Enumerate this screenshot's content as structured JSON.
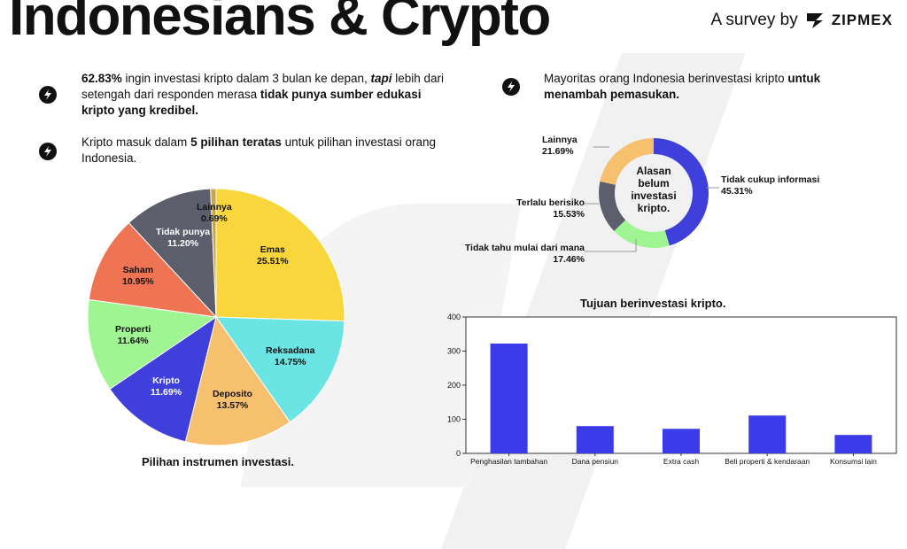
{
  "header": {
    "title": "Indonesians & Crypto",
    "survey_prefix": "A survey by",
    "brand_name": "ZIPMEX"
  },
  "points": [
    {
      "icon": "bolt-icon",
      "parts": [
        {
          "t": "62.83%",
          "b": true
        },
        {
          "t": " ingin investasi kripto dalam 3 bulan ke depan, ",
          "b": false
        },
        {
          "t": "tapi",
          "b": true,
          "i": true
        },
        {
          "t": " lebih dari setengah dari responden merasa ",
          "b": false
        },
        {
          "t": "tidak punya sumber edukasi kripto yang kredibel.",
          "b": true
        }
      ]
    },
    {
      "icon": "bolt-icon",
      "parts": [
        {
          "t": "Kripto masuk dalam ",
          "b": false
        },
        {
          "t": "5 pilihan teratas",
          "b": true
        },
        {
          "t": " untuk pilihan investasi orang Indonesia.",
          "b": false
        }
      ]
    },
    {
      "icon": "bolt-icon",
      "parts": [
        {
          "t": "Mayoritas orang Indonesia berinvestasi kripto ",
          "b": false
        },
        {
          "t": "untuk menambah pemasukan.",
          "b": true
        }
      ]
    }
  ],
  "colors": {
    "yellow": "#f9d63c",
    "cyan": "#6be4e4",
    "orange": "#f7c06e",
    "blue": "#3f3fdc",
    "green": "#9ef592",
    "red": "#ef7454",
    "slate": "#5c5f6b",
    "gold": "#c8a54a",
    "bar": "#3b3bea"
  },
  "chart_data": [
    {
      "type": "pie",
      "title": "Pilihan instrumen investasi.",
      "slices": [
        {
          "label": "Emas",
          "value": 25.51,
          "text": "25.51%",
          "color": "#f9d63c"
        },
        {
          "label": "Reksadana",
          "value": 14.75,
          "text": "14.75%",
          "color": "#6be4e4"
        },
        {
          "label": "Deposito",
          "value": 13.57,
          "text": "13.57%",
          "color": "#f7c06e"
        },
        {
          "label": "Kripto",
          "value": 11.69,
          "text": "11.69%",
          "color": "#3f3fdc"
        },
        {
          "label": "Properti",
          "value": 11.64,
          "text": "11.64%",
          "color": "#9ef592"
        },
        {
          "label": "Saham",
          "value": 10.95,
          "text": "10.95%",
          "color": "#ef7454"
        },
        {
          "label": "Tidak punya",
          "value": 11.2,
          "text": "11.20%",
          "color": "#5c5f6b"
        },
        {
          "label": "Lainnya",
          "value": 0.69,
          "text": "0.69%",
          "color": "#c8a54a"
        }
      ]
    },
    {
      "type": "pie",
      "center_text": [
        "Alasan",
        "belum",
        "investasi",
        "kripto."
      ],
      "slices": [
        {
          "label": "Tidak cukup informasi",
          "value": 45.31,
          "text": "45.31%",
          "color": "#3f3fdc"
        },
        {
          "label": "Tidak tahu mulai dari mana",
          "value": 17.46,
          "text": "17.46%",
          "color": "#9ef592"
        },
        {
          "label": "Terlalu berisiko",
          "value": 15.53,
          "text": "15.53%",
          "color": "#5c5f6b"
        },
        {
          "label": "Lainnya",
          "value": 21.69,
          "text": "21.69%",
          "color": "#f7c06e"
        }
      ]
    },
    {
      "type": "bar",
      "title": "Tujuan berinvestasi kripto.",
      "categories": [
        "Penghasilan tambahan",
        "Dana pensiun",
        "Extra cash",
        "Beli properti & kendaraan",
        "Konsumsi lain"
      ],
      "values": [
        322,
        80,
        72,
        111,
        54
      ],
      "ylim": [
        0,
        400
      ],
      "yticks": [
        0,
        100,
        200,
        300,
        400
      ],
      "color": "#3b3bea"
    }
  ]
}
